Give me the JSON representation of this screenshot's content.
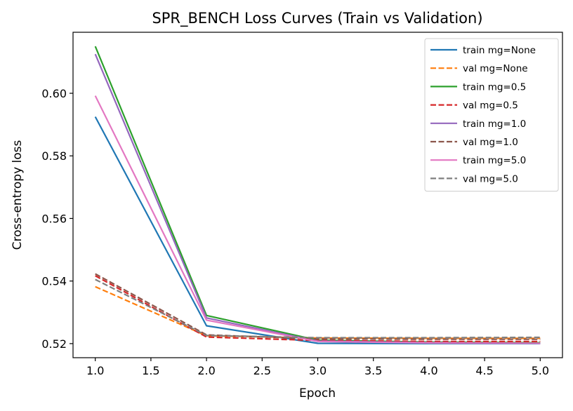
{
  "chart_data": {
    "type": "line",
    "title": "SPR_BENCH Loss Curves (Train vs Validation)",
    "xlabel": "Epoch",
    "ylabel": "Cross-entropy loss",
    "x": [
      1,
      2,
      3,
      4,
      5
    ],
    "xlim": [
      0.8,
      5.2
    ],
    "ylim": [
      0.5155,
      0.6195
    ],
    "xticks": [
      1.0,
      1.5,
      2.0,
      2.5,
      3.0,
      3.5,
      4.0,
      4.5,
      5.0
    ],
    "yticks": [
      0.52,
      0.54,
      0.56,
      0.58,
      0.6
    ],
    "legend_position": "top-right",
    "grid": false,
    "series": [
      {
        "name": "train mg=None",
        "style": "solid",
        "color": "#1f77b4",
        "values": [
          0.5925,
          0.5257,
          0.5201,
          0.52,
          0.52
        ]
      },
      {
        "name": "val mg=None",
        "style": "dashed",
        "color": "#ff7f0e",
        "values": [
          0.5382,
          0.5225,
          0.5218,
          0.5217,
          0.5217
        ]
      },
      {
        "name": "train mg=0.5",
        "style": "solid",
        "color": "#2ca02c",
        "values": [
          0.615,
          0.529,
          0.5211,
          0.5205,
          0.5203
        ]
      },
      {
        "name": "val mg=0.5",
        "style": "dashed",
        "color": "#d62728",
        "values": [
          0.5417,
          0.5221,
          0.521,
          0.5207,
          0.5207
        ]
      },
      {
        "name": "train mg=1.0",
        "style": "solid",
        "color": "#9467bd",
        "values": [
          0.6125,
          0.5282,
          0.5208,
          0.5203,
          0.5201
        ]
      },
      {
        "name": "val mg=1.0",
        "style": "dashed",
        "color": "#8c564b",
        "values": [
          0.5423,
          0.5228,
          0.5215,
          0.5214,
          0.5214
        ]
      },
      {
        "name": "train mg=5.0",
        "style": "solid",
        "color": "#e377c2",
        "values": [
          0.5992,
          0.5275,
          0.5207,
          0.5202,
          0.5201
        ]
      },
      {
        "name": "val mg=5.0",
        "style": "dashed",
        "color": "#7f7f7f",
        "values": [
          0.5405,
          0.5226,
          0.5219,
          0.5219,
          0.522
        ]
      }
    ]
  }
}
